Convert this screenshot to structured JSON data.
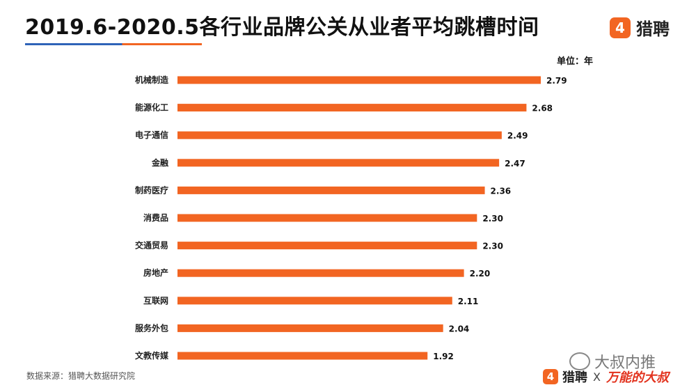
{
  "title": "2019.6-2020.5各行业品牌公关从业者平均跳槽时间",
  "brand": {
    "logo_glyph": "4",
    "name": "猎聘"
  },
  "unit_label": "单位：年",
  "source": "数据来源：猎聘大数据研究院",
  "watermark": {
    "text": "大叔内推"
  },
  "footer": {
    "logo_glyph": "4",
    "name": "猎聘",
    "x": "X",
    "partner": "万能的大叔"
  },
  "colors": {
    "bar": "#f26522",
    "accent_blue": "#2f63b8"
  },
  "chart_data": {
    "type": "bar",
    "orientation": "horizontal",
    "categories": [
      "机械制造",
      "能源化工",
      "电子通信",
      "金融",
      "制药医疗",
      "消费品",
      "交通贸易",
      "房地产",
      "互联网",
      "服务外包",
      "文教传媒"
    ],
    "values": [
      2.79,
      2.68,
      2.49,
      2.47,
      2.36,
      2.3,
      2.3,
      2.2,
      2.11,
      2.04,
      1.92
    ],
    "value_labels": [
      "2.79",
      "2.68",
      "2.49",
      "2.47",
      "2.36",
      "2.30",
      "2.30",
      "2.20",
      "2.11",
      "2.04",
      "1.92"
    ],
    "xlim": [
      0,
      2.79
    ],
    "grid": false,
    "legend": "none"
  }
}
